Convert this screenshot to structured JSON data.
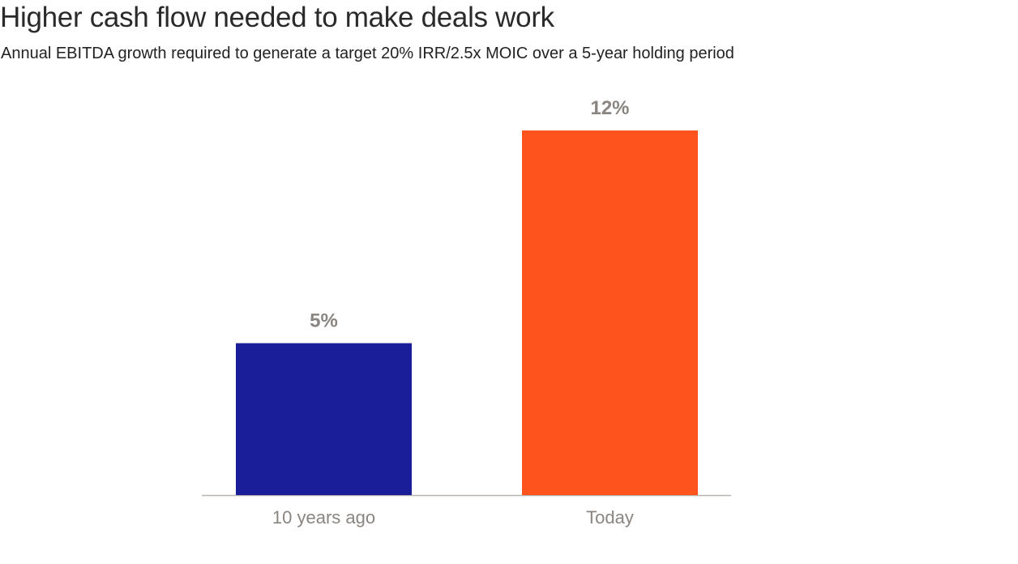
{
  "chart_data": {
    "type": "bar",
    "title": "Higher cash flow needed to make deals work",
    "subtitle": "Annual EBITDA growth required to generate a target 20% IRR/2.5x MOIC over a 5-year holding period",
    "categories": [
      "10 years ago",
      "Today"
    ],
    "values": [
      5,
      12
    ],
    "data_labels": [
      "5%",
      "12%"
    ],
    "colors": [
      "#1a1e99",
      "#ff531e"
    ],
    "xlabel": "",
    "ylabel": "",
    "ylim": [
      0,
      12
    ],
    "grid": false
  }
}
